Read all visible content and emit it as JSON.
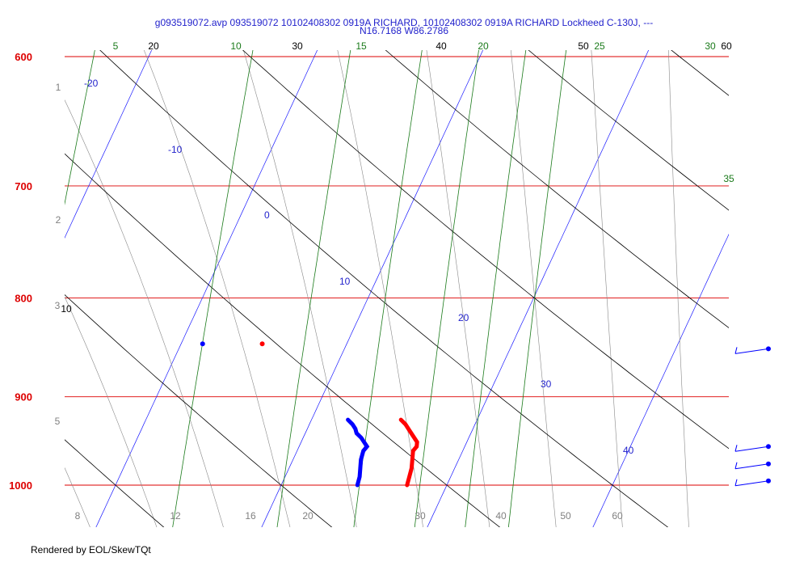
{
  "chart_data": {
    "type": "skewt",
    "title_line1": "g093519072.avp 093519072 10102408302 0919A RICHARD, 10102408302 0919A RICHARD Lockheed C-130J, ---",
    "title_line2": "N16.7168 W86.2786",
    "footer": "Rendered by EOL/SkewTQt",
    "ylim": [
      1000,
      600
    ],
    "pressure_levels": [
      {
        "p": 600,
        "label": "600"
      },
      {
        "p": 700,
        "label": "700"
      },
      {
        "p": 800,
        "label": "800"
      },
      {
        "p": 900,
        "label": "900"
      },
      {
        "p": 1000,
        "label": "1000"
      }
    ],
    "isotherms": [
      {
        "t": -20,
        "label": "-20"
      },
      {
        "t": -10,
        "label": "-10"
      },
      {
        "t": 0,
        "label": "0"
      },
      {
        "t": 10,
        "label": "10"
      },
      {
        "t": 20,
        "label": "20"
      },
      {
        "t": 30,
        "label": "30"
      },
      {
        "t": 40,
        "label": "40"
      }
    ],
    "mixing_ratio_labels": [
      {
        "label": "5"
      },
      {
        "label": "10"
      },
      {
        "label": "15"
      },
      {
        "label": "20"
      },
      {
        "label": "25"
      },
      {
        "label": "30"
      },
      {
        "label": "35"
      }
    ],
    "dry_adiabat_labels": [
      {
        "label": "10"
      },
      {
        "label": "20"
      },
      {
        "label": "30"
      },
      {
        "label": "40"
      },
      {
        "label": "50"
      },
      {
        "label": "60"
      }
    ],
    "altitude_labels": [
      {
        "label": "1"
      },
      {
        "label": "2"
      },
      {
        "label": "3"
      },
      {
        "label": "5"
      }
    ],
    "bottom_labels": [
      {
        "label": "8"
      },
      {
        "label": "12"
      },
      {
        "label": "16"
      },
      {
        "label": "20"
      },
      {
        "label": "30"
      },
      {
        "label": "40"
      },
      {
        "label": "50"
      },
      {
        "label": "60"
      }
    ],
    "series": [
      {
        "color": "#ff0000",
        "points": [
          [
            1000,
            27.6
          ],
          [
            990,
            27.5
          ],
          [
            980,
            27.4
          ],
          [
            970,
            27.2
          ],
          [
            960,
            27.0
          ],
          [
            955,
            27.1
          ],
          [
            950,
            27.0
          ],
          [
            945,
            26.7
          ],
          [
            940,
            26.4
          ],
          [
            935,
            26.1
          ],
          [
            930,
            25.8
          ],
          [
            925,
            25.4
          ]
        ]
      },
      {
        "color": "#0000ff",
        "points": [
          [
            1000,
            24.6
          ],
          [
            990,
            24.5
          ],
          [
            980,
            24.3
          ],
          [
            970,
            24.1
          ],
          [
            960,
            24.0
          ],
          [
            955,
            24.1
          ],
          [
            950,
            23.8
          ],
          [
            945,
            23.5
          ],
          [
            940,
            23.1
          ],
          [
            935,
            22.9
          ],
          [
            930,
            22.6
          ],
          [
            925,
            22.2
          ]
        ]
      }
    ],
    "isolated_points": [
      {
        "p": 845,
        "t": 14.9,
        "color": "#ff0000"
      },
      {
        "p": 845,
        "t": 11.3,
        "color": "#0000ff"
      }
    ],
    "wind_barbs": [
      {
        "p": 850
      },
      {
        "p": 955
      },
      {
        "p": 975
      },
      {
        "p": 995
      }
    ]
  }
}
